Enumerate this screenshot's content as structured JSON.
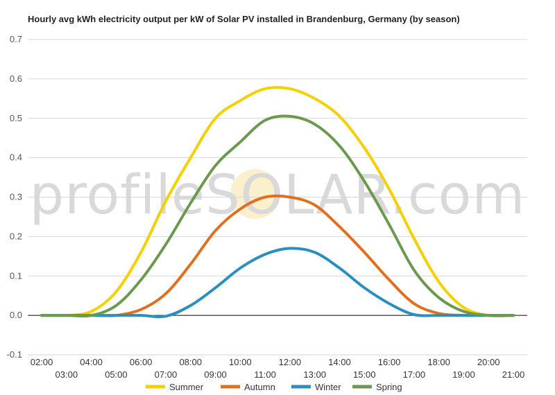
{
  "chart_data": {
    "type": "line",
    "title": "Hourly avg kWh electricity output per kW of Solar PV installed in Brandenburg, Germany (by season)",
    "xlabel": "",
    "ylabel": "",
    "ylim": [
      -0.1,
      0.7
    ],
    "yticks": [
      "-0.1",
      "0.0",
      "0.1",
      "0.2",
      "0.3",
      "0.4",
      "0.5",
      "0.6",
      "0.7"
    ],
    "ytick_values": [
      -0.1,
      0,
      0.1,
      0.2,
      0.3,
      0.4,
      0.5,
      0.6,
      0.7
    ],
    "x": [
      "02:00",
      "03:00",
      "04:00",
      "05:00",
      "06:00",
      "07:00",
      "08:00",
      "09:00",
      "10:00",
      "11:00",
      "12:00",
      "13:00",
      "14:00",
      "15:00",
      "16:00",
      "17:00",
      "18:00",
      "19:00",
      "20:00",
      "21:00"
    ],
    "grid": true,
    "legend_position": "bottom",
    "watermark": "profileSOLAR.com",
    "series": [
      {
        "name": "Summer",
        "color": "#f5d000",
        "values": [
          0,
          0,
          0.01,
          0.06,
          0.16,
          0.29,
          0.4,
          0.5,
          0.545,
          0.575,
          0.575,
          0.55,
          0.505,
          0.425,
          0.32,
          0.195,
          0.085,
          0.02,
          0,
          0
        ]
      },
      {
        "name": "Autumn",
        "color": "#e07020",
        "values": [
          0,
          0,
          0,
          0,
          0.015,
          0.055,
          0.13,
          0.215,
          0.27,
          0.3,
          0.3,
          0.28,
          0.225,
          0.16,
          0.09,
          0.03,
          0.005,
          0,
          0,
          0
        ]
      },
      {
        "name": "Winter",
        "color": "#2a8fbf",
        "values": [
          0,
          0,
          0,
          0,
          0,
          -0.002,
          0.025,
          0.07,
          0.12,
          0.155,
          0.17,
          0.16,
          0.12,
          0.07,
          0.03,
          0.002,
          0,
          0,
          0,
          0
        ]
      },
      {
        "name": "Spring",
        "color": "#6b9a4f",
        "values": [
          0,
          0,
          0,
          0.025,
          0.09,
          0.18,
          0.285,
          0.38,
          0.44,
          0.495,
          0.505,
          0.485,
          0.43,
          0.34,
          0.23,
          0.115,
          0.045,
          0.01,
          0,
          0
        ]
      }
    ]
  }
}
